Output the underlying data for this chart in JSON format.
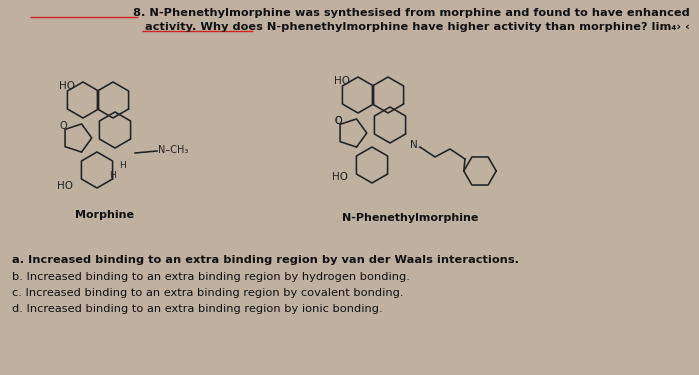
{
  "background_color": "#bfb0a0",
  "title_line1": "8. N-Phenethylmorphine was synthesised from morphine and found to have enhanced",
  "title_line2": "activity. Why does N-phenethylmorphine have higher activity than morphine? lim₄› ‹",
  "title_fontsize": 8.2,
  "answer_a": "a. Increased binding to an extra binding region by van der Waals interactions.",
  "answer_b": "b. Increased binding to an extra binding region by hydrogen bonding.",
  "answer_c": "c. Increased binding to an extra binding region by covalent bonding.",
  "answer_d": "d. Increased binding to an extra binding region by ionic bonding.",
  "answer_fontsize": 8.2,
  "morphine_label": "Morphine",
  "nphem_label": "N-Phenethylmorphine",
  "label_fontsize": 8.0,
  "text_color": "#111111",
  "line_color": "#222222",
  "underline_color": "#cc2222",
  "struct_scale": 1.0
}
